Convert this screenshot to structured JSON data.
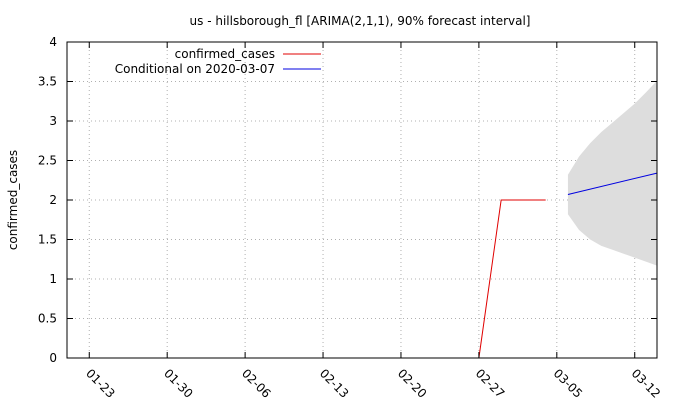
{
  "chart_data": {
    "type": "line",
    "title": "us - hillsborough_fl [ARIMA(2,1,1), 90% forecast interval]",
    "xlabel": "",
    "ylabel": "confirmed_cases",
    "x_tick_labels": [
      "01-23",
      "01-30",
      "02-06",
      "02-13",
      "02-20",
      "02-27",
      "03-05",
      "03-12"
    ],
    "x_tick_days": [
      0,
      7,
      14,
      21,
      28,
      35,
      42,
      49
    ],
    "xlim_days": [
      -2,
      51
    ],
    "ylim": [
      0,
      4
    ],
    "y_ticks": [
      "0",
      "0.5",
      "1",
      "1.5",
      "2",
      "2.5",
      "3",
      "3.5",
      "4"
    ],
    "grid": true,
    "legend_position": "top-left",
    "series": [
      {
        "name": "confirmed_cases",
        "color": "#e00000",
        "x_days": [
          35,
          37,
          41
        ],
        "values": [
          0,
          2,
          2
        ]
      },
      {
        "name": "Conditional on 2020-03-07",
        "color": "#0000e0",
        "x_days": [
          43,
          51
        ],
        "values": [
          2.07,
          2.34
        ]
      }
    ],
    "forecast_interval": {
      "fill": "#dddddd",
      "x_days": [
        43,
        44,
        45,
        46,
        47,
        48,
        49,
        50,
        51
      ],
      "upper": [
        2.32,
        2.55,
        2.72,
        2.86,
        2.98,
        3.1,
        3.22,
        3.36,
        3.51
      ],
      "lower": [
        1.82,
        1.62,
        1.5,
        1.42,
        1.37,
        1.32,
        1.27,
        1.22,
        1.17
      ]
    }
  }
}
